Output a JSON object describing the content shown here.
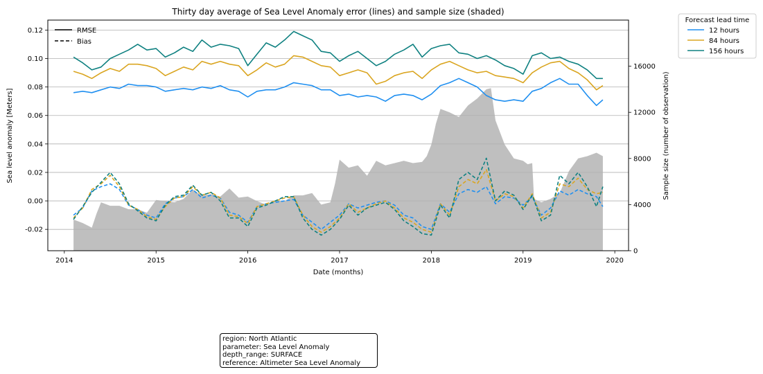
{
  "chart_data": {
    "type": "line",
    "title": "Thirty day average of Sea Level Anomaly error (lines) and sample size (shaded)",
    "xlabel": "Date (months)",
    "ylabel": "Sea level anomaly [Meters]",
    "ylabel_right": "Sample size (number of observation)",
    "x_ticks": [
      "2014",
      "2015",
      "2016",
      "2017",
      "2018",
      "2019",
      "2020"
    ],
    "y_ticks": [
      "-0.02",
      "0.00",
      "0.02",
      "0.04",
      "0.06",
      "0.08",
      "0.10",
      "0.12"
    ],
    "y2_ticks": [
      "0",
      "4000",
      "8000",
      "12000",
      "16000"
    ],
    "xlim": [
      2013.82,
      2020.15
    ],
    "ylim": [
      -0.035,
      0.127
    ],
    "y2lim": [
      0,
      20000
    ],
    "grid": "horizontal",
    "style_legend": {
      "title": "",
      "entries": [
        {
          "label": "RMSE",
          "style": "solid"
        },
        {
          "label": "Bias",
          "style": "dashed"
        }
      ],
      "position": "upper left"
    },
    "lead_legend": {
      "title": "Forecast lead time",
      "position": "outside upper right"
    },
    "series": [
      {
        "name": "12 hours",
        "color": "#1f8ff0",
        "rmse": {
          "x": [
            2014.1,
            2014.2,
            2014.3,
            2014.4,
            2014.5,
            2014.6,
            2014.7,
            2014.8,
            2014.9,
            2015.0,
            2015.1,
            2015.2,
            2015.3,
            2015.4,
            2015.5,
            2015.6,
            2015.7,
            2015.8,
            2015.9,
            2016.0,
            2016.1,
            2016.2,
            2016.3,
            2016.4,
            2016.5,
            2016.6,
            2016.7,
            2016.8,
            2016.9,
            2017.0,
            2017.1,
            2017.2,
            2017.3,
            2017.4,
            2017.5,
            2017.6,
            2017.7,
            2017.8,
            2017.9,
            2018.0,
            2018.1,
            2018.2,
            2018.3,
            2018.4,
            2018.5,
            2018.6,
            2018.7,
            2018.8,
            2018.9,
            2019.0,
            2019.1,
            2019.2,
            2019.3,
            2019.4,
            2019.5,
            2019.6,
            2019.7,
            2019.8,
            2019.87
          ],
          "y": [
            0.076,
            0.077,
            0.076,
            0.078,
            0.08,
            0.079,
            0.082,
            0.081,
            0.081,
            0.08,
            0.077,
            0.078,
            0.079,
            0.078,
            0.08,
            0.079,
            0.081,
            0.078,
            0.077,
            0.073,
            0.077,
            0.078,
            0.078,
            0.08,
            0.083,
            0.082,
            0.081,
            0.078,
            0.078,
            0.074,
            0.075,
            0.073,
            0.074,
            0.073,
            0.07,
            0.074,
            0.075,
            0.074,
            0.071,
            0.075,
            0.081,
            0.083,
            0.086,
            0.083,
            0.08,
            0.074,
            0.071,
            0.07,
            0.071,
            0.07,
            0.077,
            0.079,
            0.083,
            0.086,
            0.082,
            0.082,
            0.074,
            0.067,
            0.071
          ]
        },
        "bias": {
          "x": [
            2014.1,
            2014.2,
            2014.3,
            2014.4,
            2014.5,
            2014.6,
            2014.7,
            2014.8,
            2014.9,
            2015.0,
            2015.1,
            2015.2,
            2015.3,
            2015.4,
            2015.5,
            2015.6,
            2015.7,
            2015.8,
            2015.9,
            2016.0,
            2016.1,
            2016.2,
            2016.3,
            2016.4,
            2016.5,
            2016.6,
            2016.7,
            2016.8,
            2016.9,
            2017.0,
            2017.1,
            2017.2,
            2017.3,
            2017.4,
            2017.5,
            2017.6,
            2017.7,
            2017.8,
            2017.9,
            2018.0,
            2018.1,
            2018.2,
            2018.3,
            2018.4,
            2018.5,
            2018.6,
            2018.7,
            2018.8,
            2018.9,
            2019.0,
            2019.1,
            2019.2,
            2019.3,
            2019.4,
            2019.5,
            2019.6,
            2019.7,
            2019.8,
            2019.87
          ],
          "y": [
            -0.01,
            -0.005,
            0.007,
            0.01,
            0.012,
            0.008,
            -0.003,
            -0.006,
            -0.01,
            -0.012,
            -0.002,
            0.002,
            0.003,
            0.008,
            0.002,
            0.004,
            0.002,
            -0.008,
            -0.01,
            -0.015,
            -0.004,
            -0.002,
            -0.001,
            0.0,
            0.001,
            -0.01,
            -0.015,
            -0.02,
            -0.015,
            -0.01,
            -0.002,
            -0.005,
            -0.003,
            -0.001,
            0.0,
            -0.003,
            -0.01,
            -0.012,
            -0.018,
            -0.02,
            -0.002,
            -0.008,
            0.005,
            0.008,
            0.006,
            0.01,
            -0.002,
            0.003,
            0.002,
            -0.003,
            0.003,
            -0.01,
            -0.005,
            0.007,
            0.004,
            0.008,
            0.005,
            0.003,
            -0.004
          ]
        }
      },
      {
        "name": "84 hours",
        "color": "#daa520",
        "rmse": {
          "x": [
            2014.1,
            2014.2,
            2014.3,
            2014.4,
            2014.5,
            2014.6,
            2014.7,
            2014.8,
            2014.9,
            2015.0,
            2015.1,
            2015.2,
            2015.3,
            2015.4,
            2015.5,
            2015.6,
            2015.7,
            2015.8,
            2015.9,
            2016.0,
            2016.1,
            2016.2,
            2016.3,
            2016.4,
            2016.5,
            2016.6,
            2016.7,
            2016.8,
            2016.9,
            2017.0,
            2017.1,
            2017.2,
            2017.3,
            2017.4,
            2017.5,
            2017.6,
            2017.7,
            2017.8,
            2017.9,
            2018.0,
            2018.1,
            2018.2,
            2018.3,
            2018.4,
            2018.5,
            2018.6,
            2018.7,
            2018.8,
            2018.9,
            2019.0,
            2019.1,
            2019.2,
            2019.3,
            2019.4,
            2019.5,
            2019.6,
            2019.7,
            2019.8,
            2019.87
          ],
          "y": [
            0.091,
            0.089,
            0.086,
            0.09,
            0.093,
            0.091,
            0.096,
            0.096,
            0.095,
            0.093,
            0.088,
            0.091,
            0.094,
            0.092,
            0.098,
            0.096,
            0.098,
            0.096,
            0.095,
            0.088,
            0.092,
            0.097,
            0.094,
            0.096,
            0.102,
            0.101,
            0.098,
            0.095,
            0.094,
            0.088,
            0.09,
            0.092,
            0.09,
            0.082,
            0.084,
            0.088,
            0.09,
            0.091,
            0.086,
            0.092,
            0.096,
            0.098,
            0.095,
            0.092,
            0.09,
            0.091,
            0.088,
            0.087,
            0.086,
            0.083,
            0.09,
            0.094,
            0.097,
            0.098,
            0.093,
            0.09,
            0.085,
            0.078,
            0.081
          ]
        },
        "bias": {
          "x": [
            2014.1,
            2014.2,
            2014.3,
            2014.4,
            2014.5,
            2014.6,
            2014.7,
            2014.8,
            2014.9,
            2015.0,
            2015.1,
            2015.2,
            2015.3,
            2015.4,
            2015.5,
            2015.6,
            2015.7,
            2015.8,
            2015.9,
            2016.0,
            2016.1,
            2016.2,
            2016.3,
            2016.4,
            2016.5,
            2016.6,
            2016.7,
            2016.8,
            2016.9,
            2017.0,
            2017.1,
            2017.2,
            2017.3,
            2017.4,
            2017.5,
            2017.6,
            2017.7,
            2017.8,
            2017.9,
            2018.0,
            2018.1,
            2018.2,
            2018.3,
            2018.4,
            2018.5,
            2018.6,
            2018.7,
            2018.8,
            2018.9,
            2019.0,
            2019.1,
            2019.2,
            2019.3,
            2019.4,
            2019.5,
            2019.6,
            2019.7,
            2019.8,
            2019.87
          ],
          "y": [
            -0.012,
            -0.005,
            0.008,
            0.012,
            0.018,
            0.01,
            -0.003,
            -0.006,
            -0.011,
            -0.013,
            -0.004,
            0.002,
            0.003,
            0.01,
            0.004,
            0.006,
            0.002,
            -0.01,
            -0.011,
            -0.016,
            -0.004,
            -0.002,
            0.0,
            0.002,
            0.003,
            -0.01,
            -0.018,
            -0.022,
            -0.018,
            -0.012,
            -0.002,
            -0.008,
            -0.005,
            -0.002,
            0.0,
            -0.005,
            -0.012,
            -0.015,
            -0.02,
            -0.022,
            -0.002,
            -0.01,
            0.01,
            0.015,
            0.012,
            0.022,
            0.0,
            0.005,
            0.003,
            -0.005,
            0.005,
            -0.012,
            -0.008,
            0.012,
            0.01,
            0.016,
            0.008,
            0.005,
            0.006
          ]
        }
      },
      {
        "name": "156 hours",
        "color": "#0e8080",
        "rmse": {
          "x": [
            2014.1,
            2014.2,
            2014.3,
            2014.4,
            2014.5,
            2014.6,
            2014.7,
            2014.8,
            2014.9,
            2015.0,
            2015.1,
            2015.2,
            2015.3,
            2015.4,
            2015.5,
            2015.6,
            2015.7,
            2015.8,
            2015.9,
            2016.0,
            2016.1,
            2016.2,
            2016.3,
            2016.4,
            2016.5,
            2016.6,
            2016.7,
            2016.8,
            2016.9,
            2017.0,
            2017.1,
            2017.2,
            2017.3,
            2017.4,
            2017.5,
            2017.6,
            2017.7,
            2017.8,
            2017.9,
            2018.0,
            2018.1,
            2018.2,
            2018.3,
            2018.4,
            2018.5,
            2018.6,
            2018.7,
            2018.8,
            2018.9,
            2019.0,
            2019.1,
            2019.2,
            2019.3,
            2019.4,
            2019.5,
            2019.6,
            2019.7,
            2019.8,
            2019.87
          ],
          "y": [
            0.101,
            0.097,
            0.092,
            0.094,
            0.1,
            0.103,
            0.106,
            0.11,
            0.106,
            0.107,
            0.101,
            0.104,
            0.108,
            0.105,
            0.113,
            0.108,
            0.11,
            0.109,
            0.107,
            0.095,
            0.103,
            0.111,
            0.108,
            0.113,
            0.119,
            0.116,
            0.113,
            0.105,
            0.104,
            0.098,
            0.102,
            0.105,
            0.1,
            0.095,
            0.098,
            0.103,
            0.106,
            0.11,
            0.101,
            0.107,
            0.109,
            0.11,
            0.104,
            0.103,
            0.1,
            0.102,
            0.099,
            0.095,
            0.093,
            0.089,
            0.102,
            0.104,
            0.1,
            0.101,
            0.098,
            0.096,
            0.092,
            0.086,
            0.086
          ]
        },
        "bias": {
          "x": [
            2014.1,
            2014.2,
            2014.3,
            2014.4,
            2014.5,
            2014.6,
            2014.7,
            2014.8,
            2014.9,
            2015.0,
            2015.1,
            2015.2,
            2015.3,
            2015.4,
            2015.5,
            2015.6,
            2015.7,
            2015.8,
            2015.9,
            2016.0,
            2016.1,
            2016.2,
            2016.3,
            2016.4,
            2016.5,
            2016.6,
            2016.7,
            2016.8,
            2016.9,
            2017.0,
            2017.1,
            2017.2,
            2017.3,
            2017.4,
            2017.5,
            2017.6,
            2017.7,
            2017.8,
            2017.9,
            2018.0,
            2018.1,
            2018.2,
            2018.3,
            2018.4,
            2018.5,
            2018.6,
            2018.7,
            2018.8,
            2018.9,
            2019.0,
            2019.1,
            2019.2,
            2019.3,
            2019.4,
            2019.5,
            2019.6,
            2019.7,
            2019.8,
            2019.87
          ],
          "y": [
            -0.013,
            -0.004,
            0.006,
            0.013,
            0.02,
            0.012,
            -0.002,
            -0.007,
            -0.012,
            -0.014,
            -0.003,
            0.003,
            0.004,
            0.011,
            0.004,
            0.006,
            0.0,
            -0.012,
            -0.012,
            -0.018,
            -0.005,
            -0.003,
            0.0,
            0.003,
            0.003,
            -0.012,
            -0.02,
            -0.024,
            -0.02,
            -0.013,
            -0.003,
            -0.01,
            -0.005,
            -0.003,
            -0.001,
            -0.006,
            -0.014,
            -0.018,
            -0.023,
            -0.024,
            -0.003,
            -0.012,
            0.015,
            0.02,
            0.015,
            0.03,
            0.0,
            0.007,
            0.004,
            -0.006,
            0.004,
            -0.014,
            -0.01,
            0.018,
            0.012,
            0.02,
            0.01,
            -0.004,
            0.01
          ]
        }
      }
    ],
    "sample_size": {
      "color": "#bfbfbf",
      "x": [
        2014.1,
        2014.2,
        2014.3,
        2014.35,
        2014.4,
        2014.5,
        2014.6,
        2014.7,
        2014.8,
        2014.9,
        2015.0,
        2015.1,
        2015.2,
        2015.3,
        2015.4,
        2015.5,
        2015.6,
        2015.7,
        2015.8,
        2015.9,
        2016.0,
        2016.1,
        2016.2,
        2016.3,
        2016.4,
        2016.5,
        2016.6,
        2016.7,
        2016.8,
        2016.9,
        2016.95,
        2017.0,
        2017.1,
        2017.2,
        2017.3,
        2017.4,
        2017.5,
        2017.6,
        2017.7,
        2017.8,
        2017.9,
        2017.95,
        2018.0,
        2018.05,
        2018.1,
        2018.2,
        2018.3,
        2018.4,
        2018.5,
        2018.6,
        2018.65,
        2018.7,
        2018.8,
        2018.9,
        2019.0,
        2019.05,
        2019.1,
        2019.12,
        2019.2,
        2019.3,
        2019.4,
        2019.5,
        2019.6,
        2019.7,
        2019.8,
        2019.87
      ],
      "y": [
        2700,
        2400,
        2000,
        3200,
        4200,
        3900,
        3900,
        3600,
        3600,
        3300,
        4400,
        4300,
        4200,
        4500,
        5300,
        4800,
        4900,
        4700,
        5400,
        4600,
        4700,
        4300,
        4000,
        4300,
        4300,
        4800,
        4800,
        5000,
        4000,
        4200,
        5800,
        7900,
        7200,
        7400,
        6500,
        7800,
        7400,
        7600,
        7800,
        7600,
        7700,
        8200,
        9200,
        11000,
        12300,
        12000,
        11600,
        12600,
        13200,
        14000,
        14100,
        11300,
        9200,
        8000,
        7800,
        7500,
        7600,
        4500,
        4200,
        4500,
        5000,
        6900,
        8000,
        8200,
        8500,
        8200
      ]
    },
    "info_box": {
      "lines": [
        "region: North Atlantic",
        "parameter: Sea Level Anomaly",
        "depth_range: SURFACE",
        "reference: Altimeter Sea Level Anomaly"
      ]
    }
  }
}
